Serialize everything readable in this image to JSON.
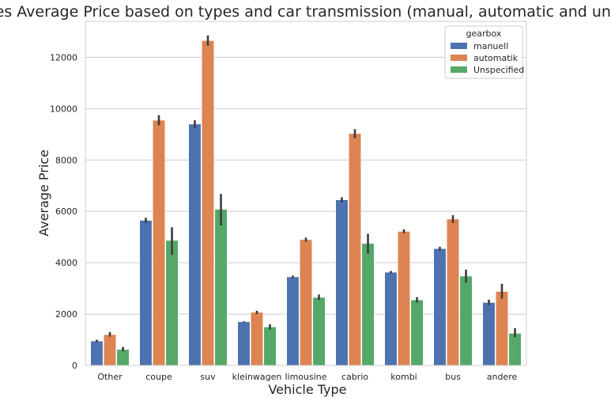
{
  "chart_data": {
    "type": "bar",
    "title": "Vehicles Average Price based on types and car transmission (manual, automatic and unknown)",
    "xlabel": "Vehicle Type",
    "ylabel": "Average Price",
    "categories": [
      "Other",
      "coupe",
      "suv",
      "kleinwagen",
      "limousine",
      "cabrio",
      "kombi",
      "bus",
      "andere"
    ],
    "series": [
      {
        "name": "manuell",
        "values": [
          950,
          5650,
          9400,
          1700,
          3450,
          6450,
          3630,
          4550,
          2450
        ],
        "error_low": [
          900,
          5550,
          9250,
          1680,
          3400,
          6350,
          3580,
          4480,
          2350
        ],
        "error_high": [
          1000,
          5750,
          9550,
          1720,
          3500,
          6550,
          3680,
          4620,
          2560
        ]
      },
      {
        "name": "automatik",
        "values": [
          1200,
          9550,
          12650,
          2070,
          4900,
          9030,
          5220,
          5700,
          2880
        ],
        "error_low": [
          1120,
          9350,
          12450,
          2000,
          4820,
          8850,
          5150,
          5550,
          2600
        ],
        "error_high": [
          1300,
          9750,
          12850,
          2130,
          4980,
          9200,
          5300,
          5850,
          3180
        ]
      },
      {
        "name": "Unspecified",
        "values": [
          620,
          4870,
          6080,
          1500,
          2650,
          4750,
          2550,
          3480,
          1250
        ],
        "error_low": [
          550,
          4300,
          5450,
          1400,
          2550,
          4350,
          2450,
          3220,
          1100
        ],
        "error_high": [
          720,
          5380,
          6680,
          1600,
          2760,
          5130,
          2660,
          3730,
          1450
        ]
      }
    ],
    "colors": [
      "#4c72b0",
      "#dd8452",
      "#55a868"
    ],
    "yticks": [
      0,
      2000,
      4000,
      6000,
      8000,
      10000,
      12000
    ],
    "ylim": [
      0,
      13400
    ],
    "grid": "horizontal",
    "legend": {
      "title": "gearbox",
      "placement": "top-right"
    }
  }
}
